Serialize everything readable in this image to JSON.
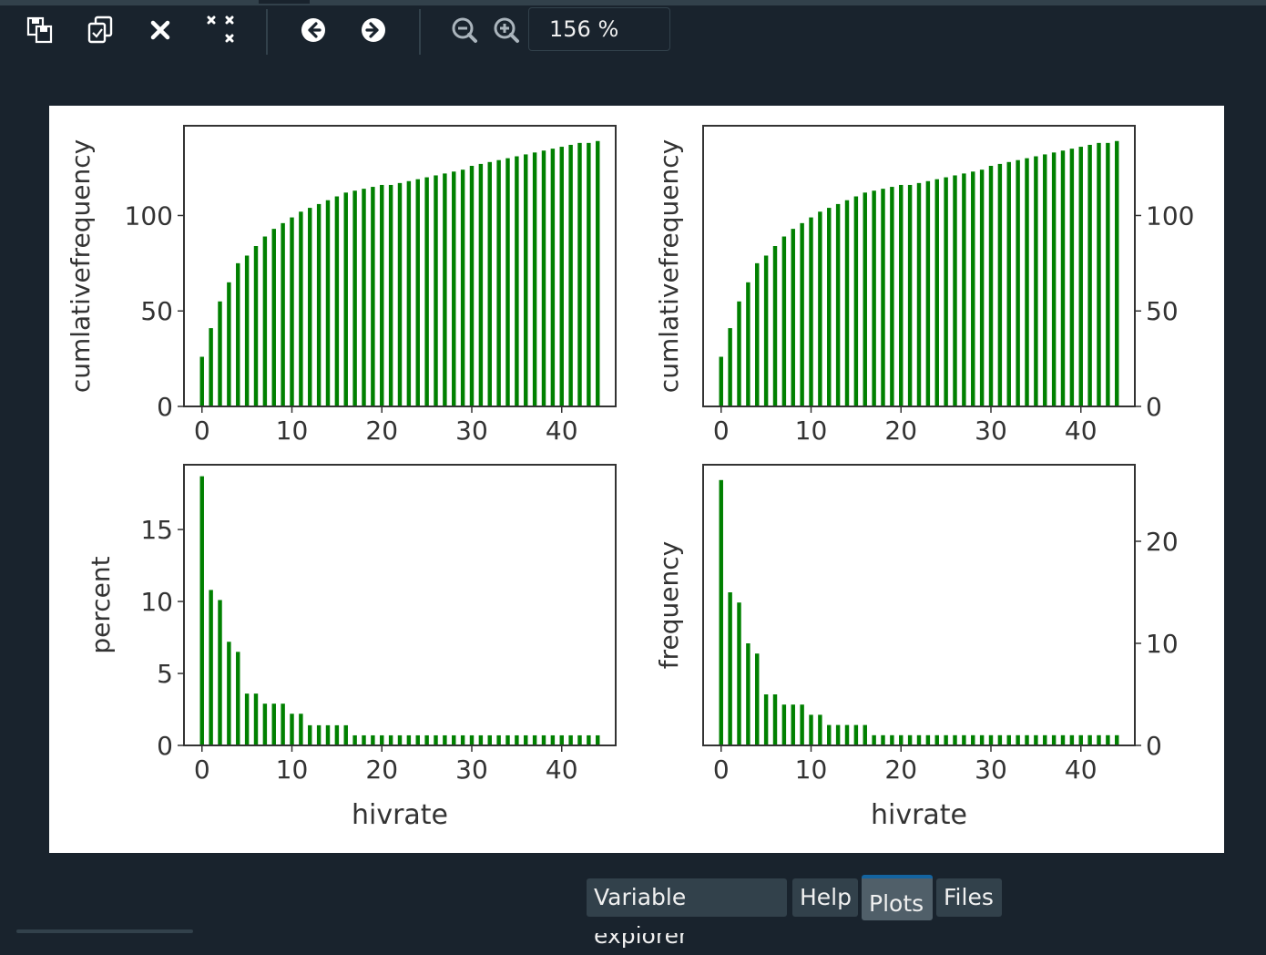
{
  "toolbar": {
    "buttons": [
      {
        "name": "save-plot",
        "icon": "save-icon"
      },
      {
        "name": "save-all-plots",
        "icon": "copy-icon"
      },
      {
        "name": "close-plot",
        "icon": "close-icon"
      },
      {
        "name": "close-all-plots",
        "icon": "close-all-icon"
      },
      {
        "name": "previous-plot",
        "icon": "arrow-left-icon"
      },
      {
        "name": "next-plot",
        "icon": "arrow-right-icon"
      },
      {
        "name": "zoom-out",
        "icon": "zoom-out-icon"
      },
      {
        "name": "zoom-in",
        "icon": "zoom-in-icon"
      }
    ],
    "zoom_value": "156 %"
  },
  "tabs": [
    {
      "label": "Variable explorer",
      "active": false
    },
    {
      "label": "Help",
      "active": false
    },
    {
      "label": "Plots",
      "active": true
    },
    {
      "label": "Files",
      "active": false
    }
  ],
  "colors": {
    "bar": "#008000",
    "background": "#19232d",
    "panel": "#32414b",
    "accent": "#1464a0"
  },
  "chart_data": [
    {
      "type": "bar",
      "position": "top-left",
      "xlabel": "",
      "ylabel": "cumlativefrequency",
      "y_axis_side": "left",
      "xlim": [
        -2,
        46
      ],
      "ylim": [
        0,
        147
      ],
      "xticks": [
        "0",
        "10",
        "20",
        "30",
        "40"
      ],
      "yticks": [
        "0",
        "50",
        "100"
      ],
      "x": [
        0,
        1,
        2,
        3,
        4,
        5,
        6,
        7,
        8,
        9,
        10,
        11,
        12,
        13,
        14,
        15,
        16,
        17,
        18,
        19,
        20,
        21,
        22,
        23,
        24,
        25,
        26,
        27,
        28,
        29,
        30,
        31,
        32,
        33,
        34,
        35,
        36,
        37,
        38,
        39,
        40,
        41,
        42,
        43,
        44
      ],
      "values": [
        26,
        41,
        55,
        65,
        75,
        79,
        84,
        89,
        93,
        96,
        99,
        102,
        104,
        106,
        108,
        110,
        112,
        113,
        114,
        115,
        116,
        116,
        117,
        118,
        119,
        120,
        121,
        122,
        123,
        124,
        126,
        127,
        128,
        129,
        130,
        131,
        132,
        133,
        134,
        135,
        136,
        137,
        138,
        138,
        139
      ]
    },
    {
      "type": "bar",
      "position": "top-right",
      "xlabel": "",
      "ylabel": "cumlativefrequency",
      "y_axis_side": "right",
      "xlim": [
        -2,
        46
      ],
      "ylim": [
        0,
        147
      ],
      "xticks": [
        "0",
        "10",
        "20",
        "30",
        "40"
      ],
      "yticks": [
        "0",
        "50",
        "100"
      ],
      "x": [
        0,
        1,
        2,
        3,
        4,
        5,
        6,
        7,
        8,
        9,
        10,
        11,
        12,
        13,
        14,
        15,
        16,
        17,
        18,
        19,
        20,
        21,
        22,
        23,
        24,
        25,
        26,
        27,
        28,
        29,
        30,
        31,
        32,
        33,
        34,
        35,
        36,
        37,
        38,
        39,
        40,
        41,
        42,
        43,
        44
      ],
      "values": [
        26,
        41,
        55,
        65,
        75,
        79,
        84,
        89,
        93,
        96,
        99,
        102,
        104,
        106,
        108,
        110,
        112,
        113,
        114,
        115,
        116,
        116,
        117,
        118,
        119,
        120,
        121,
        122,
        123,
        124,
        126,
        127,
        128,
        129,
        130,
        131,
        132,
        133,
        134,
        135,
        136,
        137,
        138,
        138,
        139
      ]
    },
    {
      "type": "bar",
      "position": "bottom-left",
      "xlabel": "hivrate",
      "ylabel": "percent",
      "y_axis_side": "left",
      "xlim": [
        -2,
        46
      ],
      "ylim": [
        0,
        19.5
      ],
      "xticks": [
        "0",
        "10",
        "20",
        "30",
        "40"
      ],
      "yticks": [
        "0",
        "5",
        "10",
        "15"
      ],
      "x": [
        0,
        1,
        2,
        3,
        4,
        5,
        6,
        7,
        8,
        9,
        10,
        11,
        12,
        13,
        14,
        15,
        16,
        17,
        18,
        19,
        20,
        21,
        22,
        23,
        24,
        25,
        26,
        27,
        28,
        29,
        30,
        31,
        32,
        33,
        34,
        35,
        36,
        37,
        38,
        39,
        40,
        41,
        42,
        43,
        44
      ],
      "values": [
        18.7,
        10.8,
        10.1,
        7.2,
        6.5,
        3.6,
        3.6,
        2.9,
        2.9,
        2.9,
        2.2,
        2.2,
        1.4,
        1.4,
        1.4,
        1.4,
        1.4,
        0.7,
        0.7,
        0.7,
        0.7,
        0.7,
        0.7,
        0.7,
        0.7,
        0.7,
        0.7,
        0.7,
        0.7,
        0.7,
        0.7,
        0.7,
        0.7,
        0.7,
        0.7,
        0.7,
        0.7,
        0.7,
        0.7,
        0.7,
        0.7,
        0.7,
        0.7,
        0.7,
        0.7
      ]
    },
    {
      "type": "bar",
      "position": "bottom-right",
      "xlabel": "hivrate",
      "ylabel": "frequency",
      "y_axis_side": "right",
      "xlim": [
        -2,
        46
      ],
      "ylim": [
        0,
        27.5
      ],
      "xticks": [
        "0",
        "10",
        "20",
        "30",
        "40"
      ],
      "yticks": [
        "0",
        "10",
        "20"
      ],
      "x": [
        0,
        1,
        2,
        3,
        4,
        5,
        6,
        7,
        8,
        9,
        10,
        11,
        12,
        13,
        14,
        15,
        16,
        17,
        18,
        19,
        20,
        21,
        22,
        23,
        24,
        25,
        26,
        27,
        28,
        29,
        30,
        31,
        32,
        33,
        34,
        35,
        36,
        37,
        38,
        39,
        40,
        41,
        42,
        43,
        44
      ],
      "values": [
        26,
        15,
        14,
        10,
        9,
        5,
        5,
        4,
        4,
        4,
        3,
        3,
        2,
        2,
        2,
        2,
        2,
        1,
        1,
        1,
        1,
        1,
        1,
        1,
        1,
        1,
        1,
        1,
        1,
        1,
        1,
        1,
        1,
        1,
        1,
        1,
        1,
        1,
        1,
        1,
        1,
        1,
        1,
        1,
        1
      ]
    }
  ]
}
